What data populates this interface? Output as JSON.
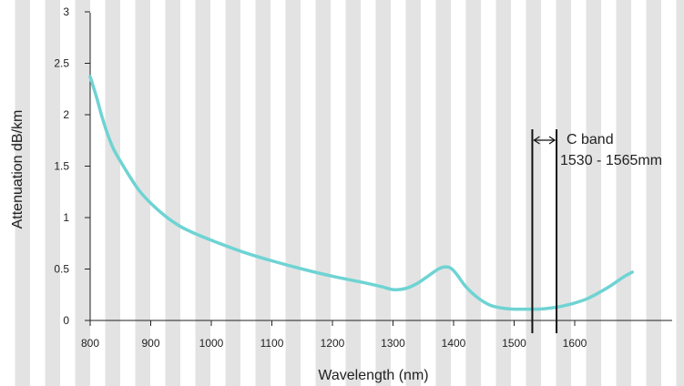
{
  "chart_data": {
    "type": "line",
    "title": "",
    "xlabel": "Wavelength (nm)",
    "ylabel": "Attenuation dB/km",
    "xlim": [
      800,
      1700
    ],
    "ylim": [
      0,
      3
    ],
    "xticks": [
      800,
      900,
      1000,
      1100,
      1200,
      1300,
      1400,
      1500,
      1600
    ],
    "yticks": [
      0,
      0.5,
      1,
      1.5,
      2,
      2.5,
      3
    ],
    "xtick_labels": [
      "800",
      "900",
      "1000",
      "1100",
      "1200",
      "1300",
      "1400",
      "1500",
      "1600"
    ],
    "ytick_labels": [
      "0",
      "0.5",
      "1",
      "1.5",
      "2",
      "2.5",
      "3"
    ],
    "grid": false,
    "background": "vertical light-gray stripes",
    "series": [
      {
        "color": "#6fd3d3",
        "x": [
          800,
          810,
          820,
          830,
          840,
          860,
          880,
          900,
          925,
          950,
          975,
          1000,
          1050,
          1100,
          1150,
          1200,
          1250,
          1280,
          1300,
          1320,
          1340,
          1360,
          1375,
          1385,
          1395,
          1405,
          1420,
          1440,
          1460,
          1480,
          1500,
          1520,
          1540,
          1560,
          1580,
          1600,
          1620,
          1640,
          1660,
          1680,
          1695
        ],
        "y": [
          2.37,
          2.18,
          1.97,
          1.79,
          1.65,
          1.45,
          1.27,
          1.14,
          1.01,
          0.91,
          0.84,
          0.78,
          0.67,
          0.58,
          0.5,
          0.43,
          0.37,
          0.33,
          0.3,
          0.31,
          0.36,
          0.44,
          0.5,
          0.52,
          0.51,
          0.45,
          0.33,
          0.22,
          0.15,
          0.12,
          0.11,
          0.11,
          0.11,
          0.12,
          0.14,
          0.17,
          0.21,
          0.27,
          0.34,
          0.42,
          0.47
        ]
      }
    ],
    "annotations": {
      "band_lines_x": [
        1530,
        1570
      ],
      "band_label_1": "C band",
      "band_label_2": "1530 - 1565mm"
    }
  }
}
